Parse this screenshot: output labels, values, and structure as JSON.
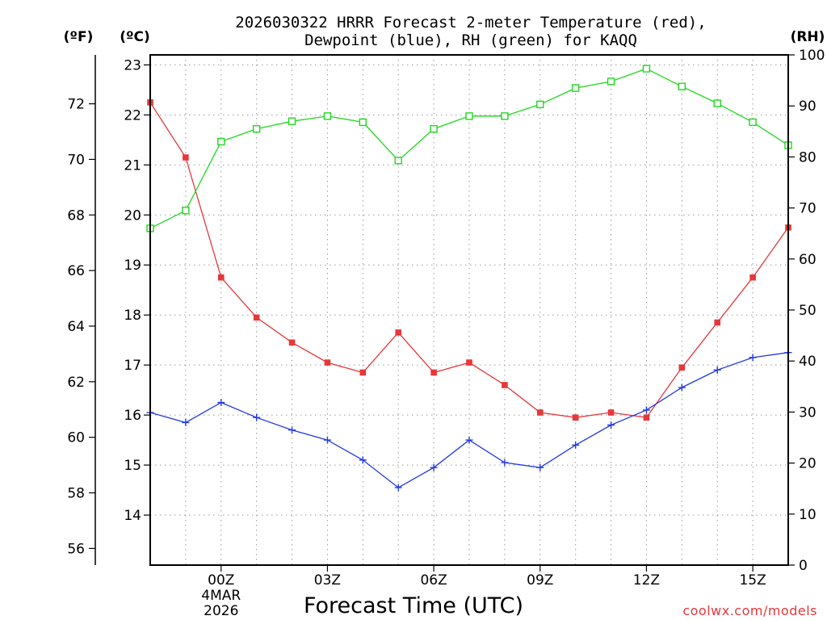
{
  "chart_data": {
    "type": "line",
    "title": "2026030322 HRRR Forecast 2-meter Temperature (red), Dewpoint (blue), RH (green) for KAQQ",
    "title_lines": [
      "2026030322 HRRR Forecast 2-meter Temperature (red),",
      "Dewpoint (blue), RH (green) for KAQQ"
    ],
    "xlabel": "Forecast Time (UTC)",
    "unit_labels": {
      "fahrenheit": "(ºF)",
      "celsius": "(ºC)",
      "rh": "(RH)"
    },
    "x": [
      -2,
      -1,
      0,
      1,
      2,
      3,
      4,
      5,
      6,
      7,
      8,
      9,
      10,
      11,
      12,
      13,
      14,
      15,
      16
    ],
    "x_range": [
      -2,
      16
    ],
    "x_ticks": [
      {
        "x": 0,
        "label": "00Z",
        "sub": [
          "4MAR",
          "2026"
        ]
      },
      {
        "x": 3,
        "label": "03Z"
      },
      {
        "x": 6,
        "label": "06Z"
      },
      {
        "x": 9,
        "label": "09Z"
      },
      {
        "x": 12,
        "label": "12Z"
      },
      {
        "x": 15,
        "label": "15Z"
      }
    ],
    "y_celsius": {
      "range": [
        13.0,
        23.2
      ],
      "ticks": [
        14,
        15,
        16,
        17,
        18,
        19,
        20,
        21,
        22,
        23
      ]
    },
    "y_fahrenheit": {
      "ticks": [
        56,
        58,
        60,
        62,
        64,
        66,
        68,
        70,
        72
      ]
    },
    "y_rh": {
      "range": [
        0,
        100
      ],
      "ticks": [
        0,
        10,
        20,
        30,
        40,
        50,
        60,
        70,
        80,
        90,
        100
      ]
    },
    "grid": true,
    "series": [
      {
        "name": "Temperature",
        "axis": "celsius",
        "color": "#e8373a",
        "marker": "filled-square",
        "values": [
          22.25,
          21.15,
          18.75,
          17.95,
          17.45,
          17.05,
          16.85,
          17.65,
          16.85,
          17.05,
          16.6,
          16.05,
          15.95,
          16.05,
          15.95,
          16.95,
          17.85,
          18.75,
          19.75
        ]
      },
      {
        "name": "Dewpoint",
        "axis": "celsius",
        "color": "#2339e8",
        "marker": "plus",
        "values": [
          16.05,
          15.85,
          16.25,
          15.95,
          15.7,
          15.5,
          15.1,
          14.55,
          14.95,
          15.5,
          15.05,
          14.95,
          15.4,
          15.8,
          16.1,
          16.55,
          16.9,
          17.15,
          17.25
        ]
      },
      {
        "name": "RH",
        "axis": "rh",
        "color": "#1fd81f",
        "marker": "open-square",
        "values": [
          66,
          69.5,
          83,
          85.5,
          87,
          88,
          86.8,
          79.3,
          85.5,
          88,
          88,
          90.3,
          93.5,
          94.8,
          97.3,
          93.8,
          90.5,
          86.8,
          82.3
        ]
      }
    ]
  },
  "credit": "coolwx.com/models"
}
